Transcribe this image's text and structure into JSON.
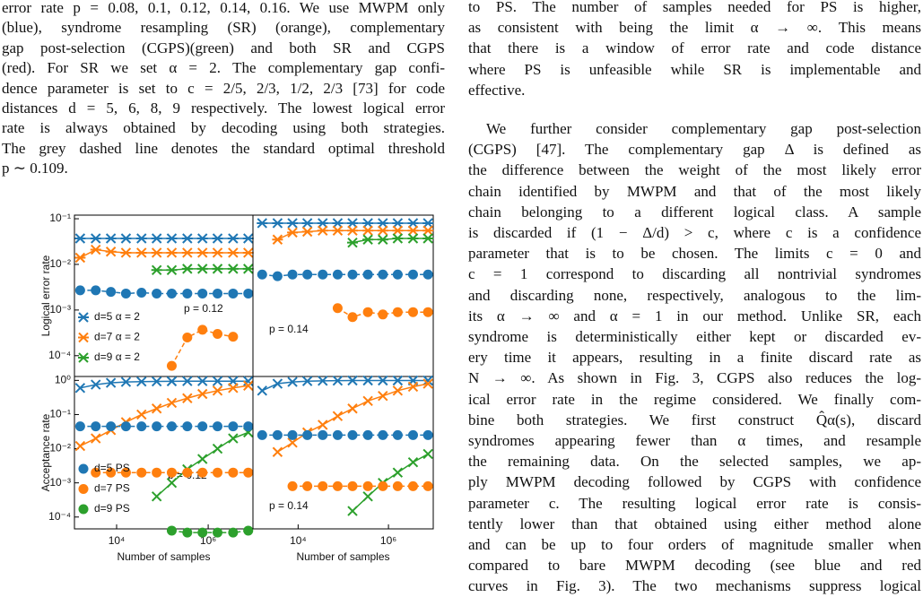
{
  "left_text": {
    "lines": [
      "error rate p = 0.08, 0.1, 0.12, 0.14, 0.16. We use MWPM only",
      "(blue), syndrome resampling (SR) (orange), complementary",
      "gap post-selection (CGPS)(green) and both SR and CGPS",
      "(red). For SR we set α = 2. The complementary gap confi-",
      "dence parameter is set to c = 2/5, 2/3, 1/2, 2/3 [73] for code",
      "distances d = 5, 6, 8, 9 respectively. The lowest logical error",
      "rate is always obtained by decoding using both strategies.",
      "The grey dashed line denotes the standard optimal threshold",
      "p ∼ 0.109."
    ]
  },
  "right_text": {
    "paragraphs": [
      {
        "lines": [
          "to PS. The number of samples needed for PS is higher,",
          "as consistent with being the limit α → ∞. This means",
          "that there is a window of error rate and code distance",
          "where PS is unfeasible while SR is implementable and",
          "effective."
        ]
      },
      {
        "lines": [
          "We further consider complementary gap post-selection",
          "(CGPS) [47]. The complementary gap Δ is defined as",
          "the difference between the weight of the most likely error",
          "chain identified by MWPM and that of the most likely",
          "chain belonging to a different logical class. A sample",
          "is discarded if (1 − Δ/d) > c, where c is a confidence",
          "parameter that is to be chosen. The limits c = 0 and",
          "c = 1 correspond to discarding all nontrivial syndromes",
          "and discarding none, respectively, analogous to the lim-",
          "its α → ∞ and α = 1 in our method. Unlike SR, each",
          "syndrome is deterministically either kept or discarded ev-",
          "ery time it appears, resulting in a finite discard rate as",
          "N → ∞. As shown in Fig. 3, CGPS also reduces the log-",
          "ical error rate in the regime considered. We finally com-",
          "bine both strategies. We first construct Q̂α(s), discard",
          "syndromes appearing fewer than α times, and resample",
          "the remaining data. On the selected samples, we ap-",
          "ply MWPM decoding followed by CGPS with confidence",
          "parameter c. The resulting logical error rate is consis-",
          "tently lower than that obtained using either method alone",
          "and can be up to four orders of magnitude smaller when",
          "compared to bare MWPM decoding (see blue and red",
          "curves in Fig. 3). The two mechanisms suppress logical"
        ]
      }
    ]
  },
  "chart_data": [
    {
      "type": "line",
      "log_x": true,
      "log_y": true,
      "annotation": "p = 0.12",
      "ylabel": "Logical error rate",
      "legend": "lower left",
      "xlim": [
        1200,
        9500000
      ],
      "ylim": [
        3.5e-05,
        0.12
      ],
      "yticks": [
        {
          "value": 0.1,
          "label": "10⁻¹"
        },
        {
          "value": 0.01,
          "label": "10⁻²"
        },
        {
          "value": 0.001,
          "label": "10⁻³"
        },
        {
          "value": 0.0001,
          "label": "10⁻⁴"
        }
      ],
      "x": [
        1600,
        3500,
        7500,
        16000,
        35000,
        75000,
        160000,
        350000,
        750000,
        1600000,
        3500000,
        7500000
      ],
      "series": [
        {
          "name": "d=5 α = 2",
          "color": "#1f77b4",
          "marker": "star",
          "values": [
            0.037,
            0.037,
            0.037,
            0.037,
            0.037,
            0.037,
            0.037,
            0.037,
            0.037,
            0.037,
            0.037,
            0.037
          ]
        },
        {
          "name": "d=7 α = 2",
          "color": "#ff7f0e",
          "marker": "star",
          "values": [
            0.014,
            0.021,
            0.019,
            0.018,
            0.018,
            0.018,
            0.018,
            0.018,
            0.018,
            0.018,
            0.018,
            0.018
          ]
        },
        {
          "name": "d=9 α = 2",
          "color": "#2ca02c",
          "marker": "star",
          "values": [
            null,
            null,
            null,
            null,
            null,
            0.0075,
            0.0075,
            0.008,
            0.008,
            0.008,
            0.008,
            0.008
          ]
        },
        {
          "color": "#1f77b4",
          "marker": "o",
          "linestyle": "dashed",
          "values": [
            0.0027,
            0.0027,
            0.0025,
            0.0023,
            0.0024,
            0.0023,
            0.0023,
            0.0023,
            0.0023,
            0.0023,
            0.0023,
            0.0023
          ]
        },
        {
          "color": "#ff7f0e",
          "marker": "o",
          "linestyle": "dashed",
          "values": [
            null,
            null,
            null,
            null,
            null,
            null,
            6e-05,
            0.00025,
            0.00037,
            0.0003,
            0.00026,
            null
          ]
        }
      ]
    },
    {
      "type": "line",
      "log_x": true,
      "log_y": true,
      "annotation": "p = 0.14",
      "xlim": [
        1000,
        9800000
      ],
      "ylim": [
        3.5e-05,
        0.12
      ],
      "x": [
        1600,
        3500,
        7500,
        16000,
        35000,
        75000,
        160000,
        350000,
        750000,
        1600000,
        3500000,
        7500000
      ],
      "series": [
        {
          "color": "#1f77b4",
          "marker": "star",
          "values": [
            0.08,
            0.08,
            0.08,
            0.08,
            0.08,
            0.08,
            0.08,
            0.08,
            0.08,
            0.08,
            0.08,
            0.08
          ]
        },
        {
          "color": "#ff7f0e",
          "marker": "star",
          "values": [
            null,
            0.035,
            0.05,
            0.052,
            0.055,
            0.055,
            0.055,
            0.055,
            0.055,
            0.055,
            0.055,
            0.055
          ]
        },
        {
          "color": "#2ca02c",
          "marker": "star",
          "values": [
            null,
            null,
            null,
            null,
            null,
            null,
            0.03,
            0.035,
            0.035,
            0.037,
            0.037,
            0.037
          ]
        },
        {
          "color": "#1f77b4",
          "marker": "o",
          "linestyle": "dashed",
          "values": [
            0.006,
            0.0055,
            0.006,
            0.006,
            0.006,
            0.006,
            0.006,
            0.006,
            0.006,
            0.006,
            0.006,
            0.006
          ]
        },
        {
          "color": "#ff7f0e",
          "marker": "o",
          "linestyle": "dashed",
          "values": [
            null,
            null,
            null,
            null,
            null,
            0.0011,
            0.0007,
            0.0009,
            0.0008,
            0.0009,
            0.0009,
            0.0009
          ]
        }
      ]
    },
    {
      "type": "line",
      "log_x": true,
      "log_y": true,
      "annotation": "p = 0.12",
      "ylabel": "Acceptance rate",
      "xlabel": "Number of samples",
      "legend": "lower left",
      "xlim": [
        1200,
        9500000
      ],
      "ylim": [
        4.5e-05,
        1.3
      ],
      "yticks": [
        {
          "value": 1,
          "label": "10⁰"
        },
        {
          "value": 0.1,
          "label": "10⁻¹"
        },
        {
          "value": 0.01,
          "label": "10⁻²"
        },
        {
          "value": 0.001,
          "label": "10⁻³"
        },
        {
          "value": 0.0001,
          "label": "10⁻⁴"
        }
      ],
      "xticks": [
        {
          "value": 10000,
          "label": "10⁴"
        },
        {
          "value": 1000000,
          "label": "10⁶"
        }
      ],
      "x": [
        1600,
        3500,
        7500,
        16000,
        35000,
        75000,
        160000,
        350000,
        750000,
        1600000,
        3500000,
        7500000
      ],
      "series": [
        {
          "color": "#1f77b4",
          "marker": "x",
          "values": [
            0.6,
            0.75,
            0.85,
            0.9,
            0.92,
            0.93,
            0.94,
            0.95,
            0.95,
            0.95,
            0.95,
            0.95
          ]
        },
        {
          "color": "#ff7f0e",
          "marker": "x",
          "values": [
            0.012,
            0.02,
            0.035,
            0.06,
            0.1,
            0.15,
            0.22,
            0.3,
            0.4,
            0.5,
            0.6,
            0.7
          ]
        },
        {
          "color": "#2ca02c",
          "marker": "x",
          "values": [
            null,
            null,
            null,
            null,
            null,
            0.0004,
            0.001,
            0.0025,
            0.005,
            0.01,
            0.02,
            0.03
          ]
        },
        {
          "name": "d=5 PS",
          "color": "#1f77b4",
          "marker": "o",
          "linestyle": "dashed",
          "values": [
            0.045,
            0.045,
            0.045,
            0.045,
            0.045,
            0.045,
            0.045,
            0.045,
            0.045,
            0.045,
            0.045,
            0.045
          ]
        },
        {
          "name": "d=7 PS",
          "color": "#ff7f0e",
          "marker": "o",
          "linestyle": "dashed",
          "values": [
            null,
            0.002,
            0.002,
            0.002,
            0.002,
            0.002,
            0.002,
            0.002,
            0.002,
            0.002,
            0.002,
            0.002
          ]
        },
        {
          "name": "d=9 PS",
          "color": "#2ca02c",
          "marker": "o",
          "linestyle": "dashed",
          "values": [
            null,
            null,
            null,
            null,
            null,
            null,
            4e-05,
            3.5e-05,
            3.5e-05,
            3.5e-05,
            3.5e-05,
            4e-05
          ]
        }
      ]
    },
    {
      "type": "line",
      "log_x": true,
      "log_y": true,
      "annotation": "p = 0.14",
      "xlabel": "Number of samples",
      "xlim": [
        1000,
        9800000
      ],
      "ylim": [
        4.5e-05,
        1.3
      ],
      "xticks": [
        {
          "value": 10000,
          "label": "10⁴"
        },
        {
          "value": 1000000,
          "label": "10⁶"
        }
      ],
      "x": [
        1600,
        3500,
        7500,
        16000,
        35000,
        75000,
        160000,
        350000,
        750000,
        1600000,
        3500000,
        7500000
      ],
      "series": [
        {
          "color": "#1f77b4",
          "marker": "x",
          "values": [
            0.5,
            0.8,
            0.9,
            0.95,
            0.97,
            0.98,
            0.99,
            0.99,
            0.99,
            0.99,
            0.99,
            0.99
          ]
        },
        {
          "color": "#ff7f0e",
          "marker": "x",
          "values": [
            null,
            0.008,
            0.015,
            0.03,
            0.05,
            0.09,
            0.15,
            0.25,
            0.35,
            0.5,
            0.65,
            0.8
          ]
        },
        {
          "color": "#2ca02c",
          "marker": "x",
          "values": [
            null,
            null,
            null,
            null,
            null,
            null,
            0.00015,
            0.0004,
            0.001,
            0.002,
            0.004,
            0.007
          ]
        },
        {
          "color": "#1f77b4",
          "marker": "o",
          "linestyle": "dashed",
          "values": [
            0.025,
            0.025,
            0.025,
            0.025,
            0.025,
            0.025,
            0.025,
            0.025,
            0.025,
            0.025,
            0.025,
            0.025
          ]
        },
        {
          "color": "#ff7f0e",
          "marker": "o",
          "linestyle": "dashed",
          "values": [
            null,
            null,
            0.0008,
            0.0008,
            0.0008,
            0.0008,
            0.0008,
            0.0008,
            0.0008,
            0.0008,
            0.0008,
            0.0008
          ]
        }
      ]
    }
  ]
}
